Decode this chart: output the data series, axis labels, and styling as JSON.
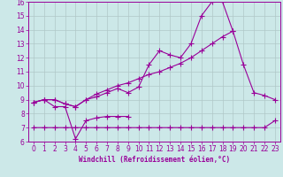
{
  "xlabel": "Windchill (Refroidissement éolien,°C)",
  "x": [
    0,
    1,
    2,
    3,
    4,
    5,
    6,
    7,
    8,
    9,
    10,
    11,
    12,
    13,
    14,
    15,
    16,
    17,
    18,
    19,
    20,
    21,
    22,
    23
  ],
  "line1_x": [
    0,
    1,
    2,
    3,
    4,
    5,
    6,
    7,
    8,
    9
  ],
  "line1_y": [
    8.8,
    9.0,
    8.5,
    8.5,
    6.2,
    7.5,
    7.7,
    7.8,
    7.8,
    7.8
  ],
  "line2_x": [
    0,
    1,
    2,
    3,
    4,
    5,
    6,
    7,
    8,
    9,
    10,
    11,
    12,
    13,
    14,
    15,
    16,
    17,
    18,
    19,
    20,
    21,
    22,
    23
  ],
  "line2_y": [
    7.0,
    7.0,
    7.0,
    7.0,
    7.0,
    7.0,
    7.0,
    7.0,
    7.0,
    7.0,
    7.0,
    7.0,
    7.0,
    7.0,
    7.0,
    7.0,
    7.0,
    7.0,
    7.0,
    7.0,
    7.0,
    7.0,
    7.0,
    7.5
  ],
  "line3_x": [
    0,
    1,
    2,
    3,
    4,
    5,
    6,
    7,
    8,
    9,
    10,
    11,
    12,
    13,
    14,
    15,
    16,
    17,
    18,
    19,
    20,
    21,
    22,
    23
  ],
  "line3_y": [
    8.8,
    9.0,
    9.0,
    8.7,
    8.5,
    9.0,
    9.2,
    9.5,
    9.8,
    9.5,
    9.9,
    11.5,
    12.5,
    12.2,
    12.0,
    13.0,
    15.0,
    16.0,
    16.0,
    13.9,
    11.5,
    9.5,
    9.3,
    9.0
  ],
  "line4_x": [
    0,
    1,
    2,
    3,
    4,
    5,
    6,
    7,
    8,
    9,
    10,
    11,
    12,
    13,
    14,
    15,
    16,
    17,
    18,
    19
  ],
  "line4_y": [
    8.8,
    9.0,
    9.0,
    8.7,
    8.5,
    9.0,
    9.4,
    9.7,
    10.0,
    10.2,
    10.5,
    10.8,
    11.0,
    11.3,
    11.6,
    12.0,
    12.5,
    13.0,
    13.5,
    13.9
  ],
  "line_color": "#990099",
  "bg_color": "#cce8e8",
  "grid_color": "#b0c8c8",
  "ylim": [
    6,
    16
  ],
  "xlim": [
    -0.5,
    23.5
  ],
  "yticks": [
    6,
    7,
    8,
    9,
    10,
    11,
    12,
    13,
    14,
    15,
    16
  ],
  "xticks": [
    0,
    1,
    2,
    3,
    4,
    5,
    6,
    7,
    8,
    9,
    10,
    11,
    12,
    13,
    14,
    15,
    16,
    17,
    18,
    19,
    20,
    21,
    22,
    23
  ]
}
